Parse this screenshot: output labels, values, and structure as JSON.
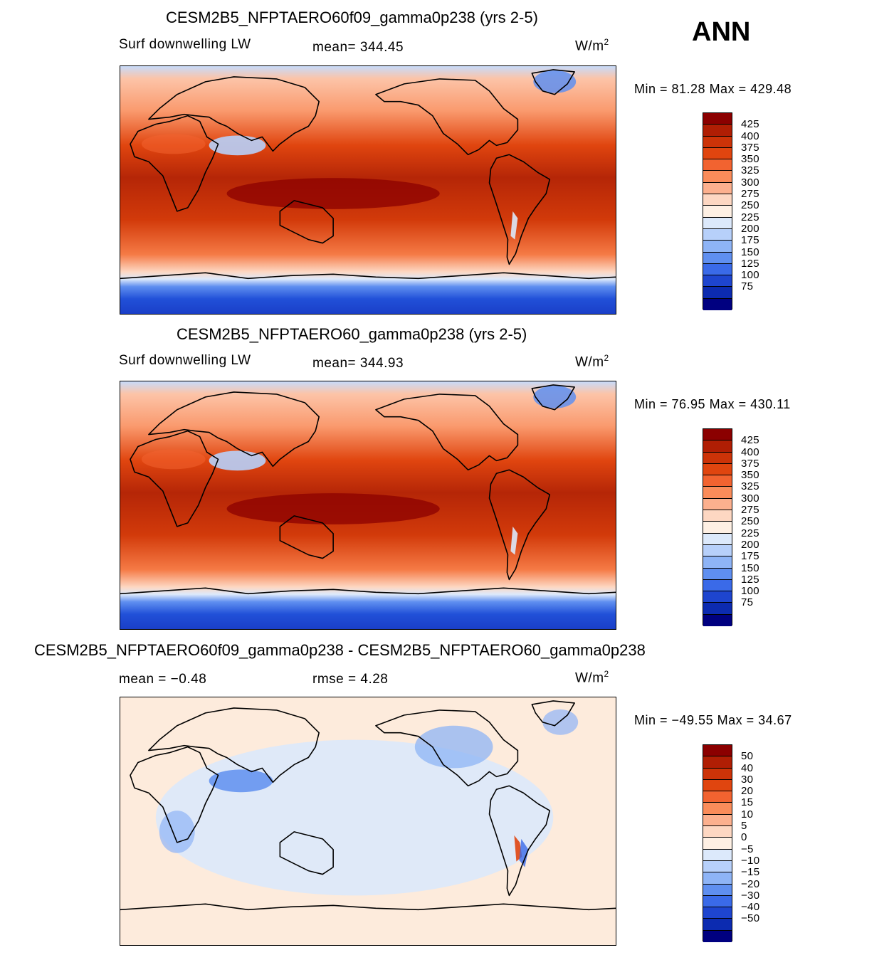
{
  "season": "ANN",
  "units": {
    "base": "W/m",
    "exp": "2"
  },
  "panels": [
    {
      "title": "CESM2B5_NFPTAERO60f09_gamma0p238 (yrs 2-5)",
      "left_text": "Surf downwelling LW",
      "center_text": "mean= 344.45",
      "minmax": "Min =   81.28 Max = 429.48",
      "levels": [
        "425",
        "400",
        "375",
        "350",
        "325",
        "300",
        "275",
        "250",
        "225",
        "200",
        "175",
        "150",
        "125",
        "100",
        "75"
      ],
      "colors": [
        "#8b0000",
        "#b01e04",
        "#cc3308",
        "#e0450f",
        "#f26330",
        "#fa8c5a",
        "#fcb08e",
        "#fdd7c2",
        "#fef0e4",
        "#dce9fb",
        "#b7d0fa",
        "#8eb4f6",
        "#5f8ff0",
        "#3a6ae8",
        "#1e45cf",
        "#0c2bb0",
        "#000080"
      ]
    },
    {
      "title": "CESM2B5_NFPTAERO60_gamma0p238 (yrs 2-5)",
      "left_text": "Surf downwelling LW",
      "center_text": "mean= 344.93",
      "minmax": "Min =   76.95 Max = 430.11",
      "levels": [
        "425",
        "400",
        "375",
        "350",
        "325",
        "300",
        "275",
        "250",
        "225",
        "200",
        "175",
        "150",
        "125",
        "100",
        "75"
      ],
      "colors": [
        "#8b0000",
        "#b01e04",
        "#cc3308",
        "#e0450f",
        "#f26330",
        "#fa8c5a",
        "#fcb08e",
        "#fdd7c2",
        "#fef0e4",
        "#dce9fb",
        "#b7d0fa",
        "#8eb4f6",
        "#5f8ff0",
        "#3a6ae8",
        "#1e45cf",
        "#0c2bb0",
        "#000080"
      ]
    },
    {
      "title": "CESM2B5_NFPTAERO60f09_gamma0p238 - CESM2B5_NFPTAERO60_gamma0p238",
      "left_text": "mean =   −0.48",
      "center_text": "rmse =     4.28",
      "minmax": "Min = −49.55 Max =   34.67",
      "levels": [
        "50",
        "40",
        "30",
        "20",
        "15",
        "10",
        "5",
        "0",
        "−5",
        "−10",
        "−15",
        "−20",
        "−30",
        "−40",
        "−50"
      ],
      "colors": [
        "#8b0000",
        "#b01e04",
        "#cc3308",
        "#e0450f",
        "#f26330",
        "#fa8c5a",
        "#fcb08e",
        "#fdd7c2",
        "#fef0e4",
        "#dce9fb",
        "#b7d0fa",
        "#8eb4f6",
        "#5f8ff0",
        "#3a6ae8",
        "#1e45cf",
        "#0c2bb0",
        "#000080"
      ]
    }
  ]
}
